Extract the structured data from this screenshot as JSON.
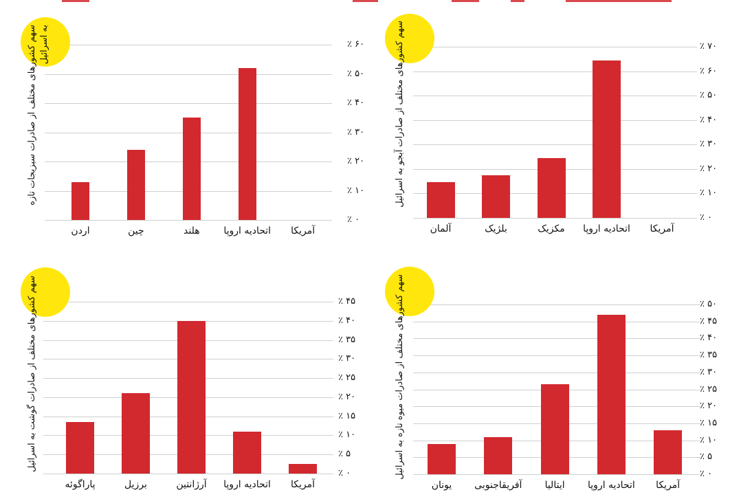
{
  "page": {
    "background": "#ffffff",
    "language": "fa",
    "layout": "2x2-bar-chart-grid"
  },
  "colors": {
    "bar": "#d2292e",
    "highlight_circle": "#ffe70d",
    "gridline": "#cfcfcf",
    "text": "#131313"
  },
  "chart_data": [
    {
      "type": "bar",
      "position": "top-left",
      "title": "سهم کشورهای مختلف از صادرات سبزیجات تازه به اسرائیل",
      "title_lines": [
        "سهم کشورهای مختلف از صادرات سبزیجات تازه",
        "به اسرائیل"
      ],
      "categories": [
        "اردن",
        "چین",
        "هلند",
        "اتحادیه اروپا",
        "آمریکا"
      ],
      "values": [
        13,
        24,
        35,
        52,
        0
      ],
      "unit": "%",
      "ylim": [
        0,
        60
      ],
      "ytick_step": 10,
      "ytick_labels": [
        "٪ ۰",
        "٪ ۱۰",
        "٪ ۲۰",
        "٪ ۳۰",
        "٪ ۴۰",
        "٪ ۵۰",
        "٪ ۶۰"
      ],
      "grid": "horizontal",
      "legend": "none"
    },
    {
      "type": "bar",
      "position": "top-right",
      "title": "سهم کشورهای مختلف از صادرات آبجو به اسرائیل",
      "title_lines": [
        "سهم کشورهای مختلف از صادرات آبجو به اسرائیل"
      ],
      "categories": [
        "آلمان",
        "بلژیک",
        "مکزیک",
        "اتحادیه اروپا",
        "آمریکا"
      ],
      "values": [
        14.5,
        17.5,
        24.5,
        64.5,
        0
      ],
      "unit": "%",
      "ylim": [
        0,
        70
      ],
      "ytick_step": 10,
      "ytick_labels": [
        "٪ ۰",
        "٪ ۱۰",
        "٪ ۲۰",
        "٪ ۳۰",
        "٪ ۴۰",
        "٪ ۵۰",
        "٪ ۶۰",
        "٪ ۷۰"
      ],
      "grid": "horizontal",
      "legend": "none"
    },
    {
      "type": "bar",
      "position": "bottom-left",
      "title": "سهم کشورهای مختلف از صادرات گوشت به اسرائیل",
      "title_lines": [
        "سهم کشورهای مختلف از صادرات گوشت به اسرائیل"
      ],
      "categories": [
        "پاراگوئه",
        "برزیل",
        "آرژانتین",
        "اتحادیه اروپا",
        "آمریکا"
      ],
      "values": [
        13.5,
        21,
        40,
        11,
        2.5
      ],
      "unit": "%",
      "ylim": [
        0,
        45
      ],
      "ytick_step": 5,
      "ytick_labels": [
        "٪ ۰",
        "٪ ۵",
        "٪ ۱۰",
        "٪ ۱۵",
        "٪ ۲۰",
        "٪ ۲۵",
        "٪ ۳۰",
        "٪ ۳۵",
        "٪ ۴۰",
        "٪ ۴۵"
      ],
      "grid": "horizontal",
      "legend": "none"
    },
    {
      "type": "bar",
      "position": "bottom-right",
      "title": "سهم کشورهای مختلف از صادرات میوه تازه به اسرائیل",
      "title_lines": [
        "سهم کشورهای مختلف از صادرات میوه تازه به اسرائیل"
      ],
      "categories": [
        "یونان",
        "آفریقاجنوبی",
        "ایتالیا",
        "اتحادیه اروپا",
        "آمریکا"
      ],
      "values": [
        9,
        11,
        26.5,
        47,
        13
      ],
      "unit": "%",
      "ylim": [
        0,
        50
      ],
      "ytick_step": 5,
      "ytick_labels": [
        "٪ ۰",
        "٪ ۵",
        "٪ ۱۰",
        "٪ ۱۵",
        "٪ ۲۰",
        "٪ ۲۵",
        "٪ ۳۰",
        "٪ ۳۵",
        "٪ ۴۰",
        "٪ ۴۵",
        "٪ ۵۰"
      ],
      "grid": "horizontal",
      "legend": "none"
    }
  ]
}
